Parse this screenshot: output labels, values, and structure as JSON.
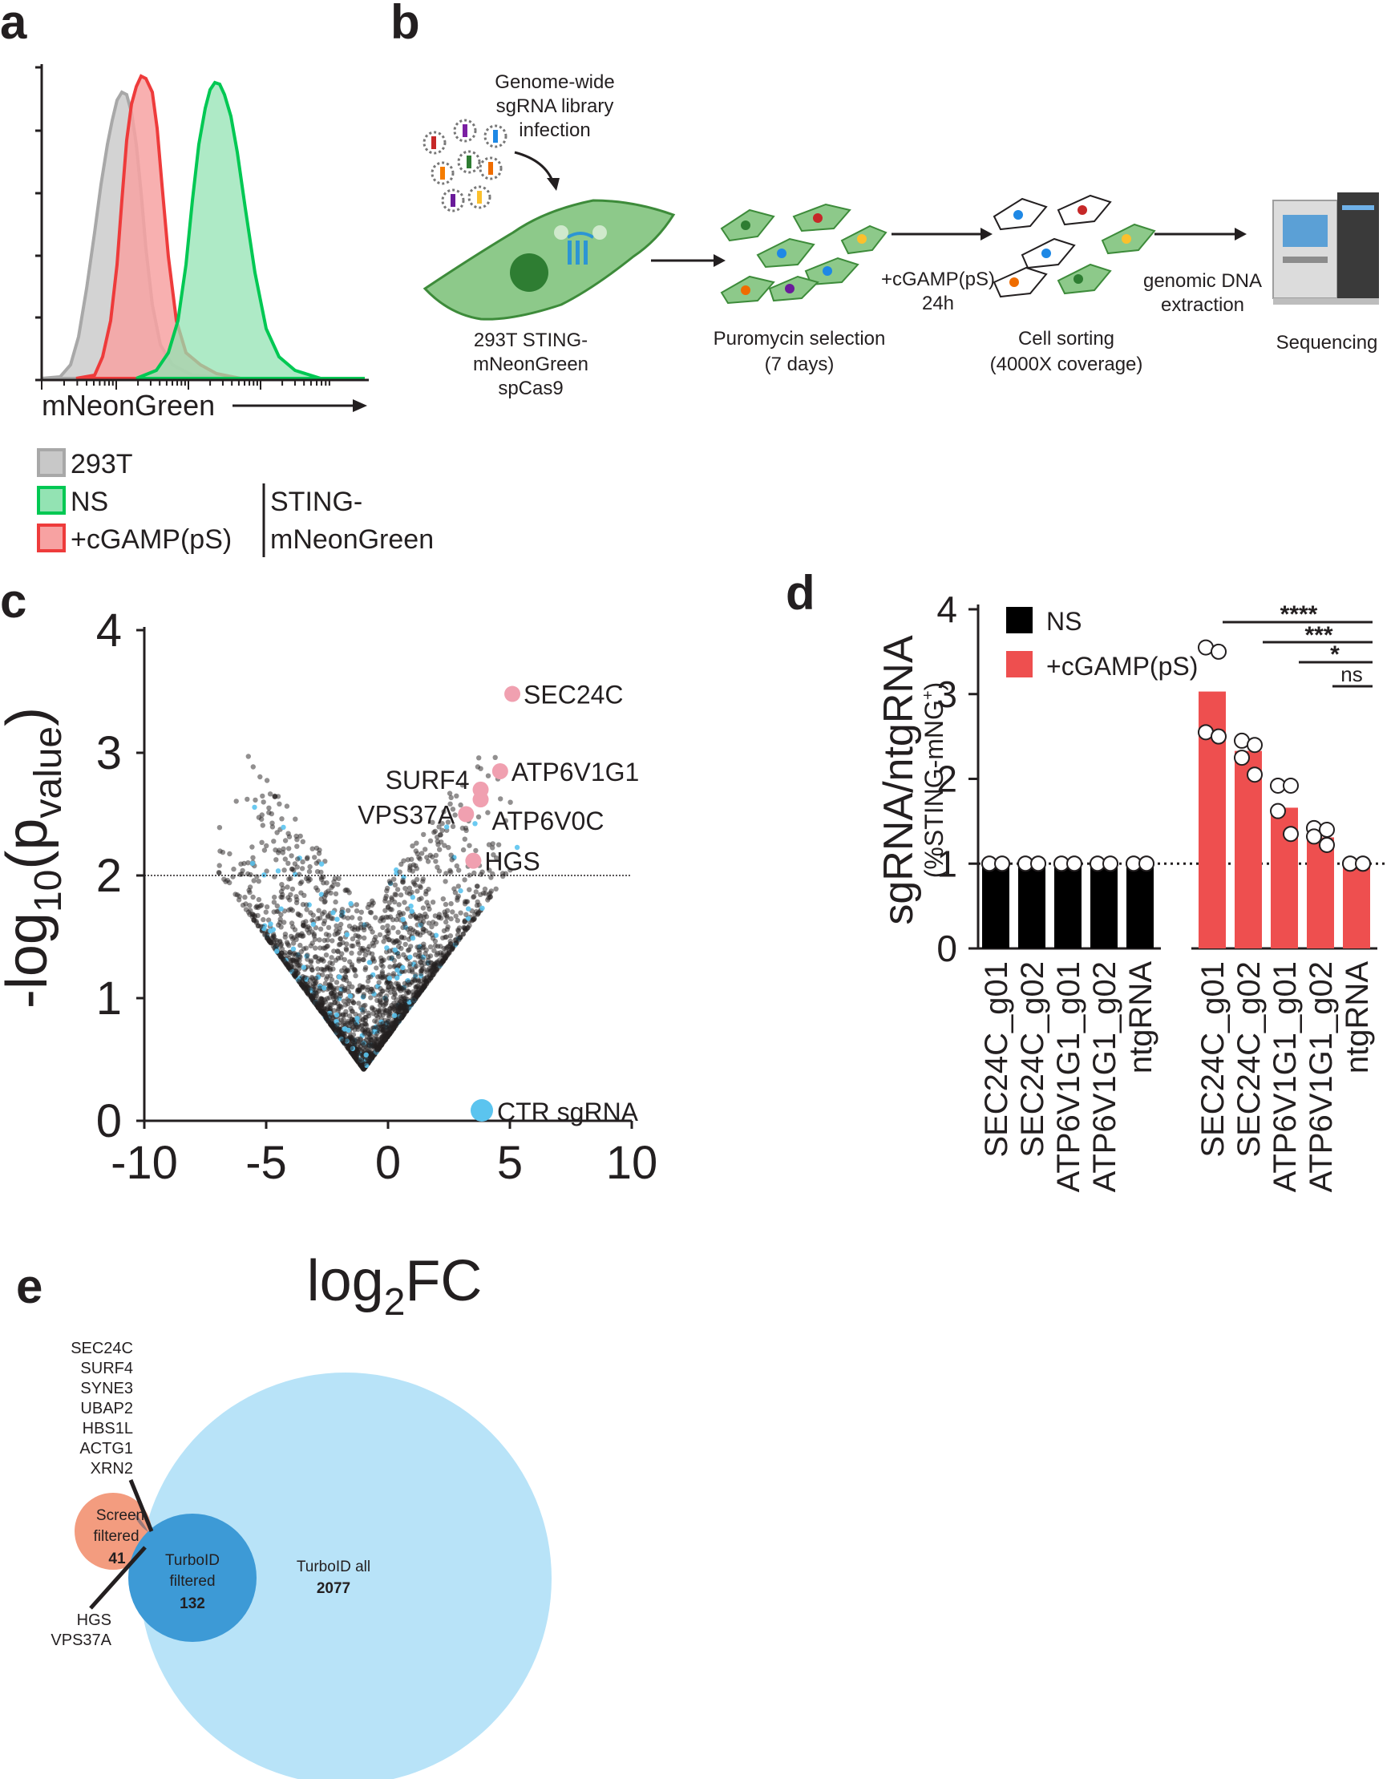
{
  "panels": {
    "a": "a",
    "b": "b",
    "c": "c",
    "d": "d",
    "e": "e"
  },
  "panel_a": {
    "xlabel": "mNeonGreen",
    "legend": [
      {
        "label": "293T",
        "color": "#c8c8c8",
        "stroke": "#a8a8a8"
      },
      {
        "label": "NS",
        "color": "#93e3b3",
        "stroke": "#00c853"
      },
      {
        "label": "+cGAMP(pS)",
        "color": "#f7a2a2",
        "stroke": "#ee3b3b"
      }
    ],
    "group_label": [
      "STING-",
      "mNeonGreen"
    ]
  },
  "panel_b": {
    "infection": [
      "Genome-wide",
      "sgRNA library",
      "infection"
    ],
    "cell_label": [
      "293T STING-",
      "mNeonGreen",
      "spCas9"
    ],
    "selection": [
      "Puromycin selection",
      "(7 days)"
    ],
    "treatment": [
      "+cGAMP(pS)",
      "24h"
    ],
    "sorting": [
      "Cell sorting",
      "(4000X coverage)"
    ],
    "extraction": [
      "genomic DNA",
      "extraction"
    ],
    "sequencing": "Sequencing"
  },
  "chart_data": [
    {
      "id": "c",
      "type": "scatter",
      "title": "",
      "xlabel": "log2FC",
      "ylabel": "-log10(pvalue)",
      "xlim": [
        -10,
        10
      ],
      "ylim": [
        0,
        4
      ],
      "xticks": [
        "-10",
        "-5",
        "0",
        "5",
        "10"
      ],
      "yticks": [
        "0",
        "1",
        "2",
        "3",
        "4"
      ],
      "threshold": 2,
      "legend": "CTR sgRNA",
      "colors": {
        "genes": "#231f20",
        "hits": "#f0a0b0",
        "ctr": "#5bc4ef"
      },
      "highlighted": [
        {
          "label": "SEC24C",
          "x": 5.1,
          "y": 3.48
        },
        {
          "label": "ATP6V1G1",
          "x": 4.6,
          "y": 2.85
        },
        {
          "label": "SURF4",
          "x": 3.8,
          "y": 2.7
        },
        {
          "label": "ATP6V0C",
          "x": 3.8,
          "y": 2.62
        },
        {
          "label": "VPS37A",
          "x": 3.2,
          "y": 2.5
        },
        {
          "label": "HGS",
          "x": 3.5,
          "y": 2.12
        }
      ]
    },
    {
      "id": "d",
      "type": "bar",
      "ylabel": "sgRNA/ntgRNA",
      "ylabel2": "(%STING-mNG+)",
      "ylim": [
        0,
        4
      ],
      "yticks": [
        "0",
        "1",
        "2",
        "3",
        "4"
      ],
      "categories": [
        "SEC24C_g01",
        "SEC24C_g02",
        "ATP6V1G1_g01",
        "ATP6V1G1_g02",
        "ntgRNA"
      ],
      "series": [
        {
          "name": "NS",
          "color": "#000000",
          "values": [
            1,
            1,
            1,
            1,
            1
          ],
          "points": [
            [
              1,
              1,
              1,
              1
            ],
            [
              1,
              1,
              1,
              1
            ],
            [
              1,
              1,
              1,
              1
            ],
            [
              1,
              1,
              1,
              1
            ],
            [
              1,
              1,
              1,
              1
            ]
          ]
        },
        {
          "name": "+cGAMP(pS)",
          "color": "#ee4f4f",
          "values": [
            3.03,
            2.33,
            1.66,
            1.31,
            1.0
          ],
          "points": [
            [
              3.55,
              3.5,
              2.55,
              2.5
            ],
            [
              2.45,
              2.4,
              2.25,
              2.05
            ],
            [
              1.92,
              1.92,
              1.62,
              1.35
            ],
            [
              1.42,
              1.4,
              1.32,
              1.22
            ],
            [
              1,
              1,
              1,
              1
            ]
          ]
        }
      ],
      "significance": [
        "****",
        "***",
        "*",
        "ns"
      ]
    }
  ],
  "panel_e": {
    "genes_top": [
      "SEC24C",
      "SURF4",
      "SYNE3",
      "UBAP2",
      "HBS1L",
      "ACTG1",
      "XRN2"
    ],
    "genes_bottom": [
      "HGS",
      "VPS37A"
    ],
    "screen": {
      "label1": "Screen",
      "label2": "filtered",
      "count": "41",
      "color": "#f39c7f"
    },
    "turbo_filtered": {
      "label1": "TurboID",
      "label2": "filtered",
      "count": "132",
      "color": "#3d9ad6"
    },
    "turbo_all": {
      "label": "TurboID all",
      "count": "2077",
      "color": "#b8e3f8"
    }
  }
}
